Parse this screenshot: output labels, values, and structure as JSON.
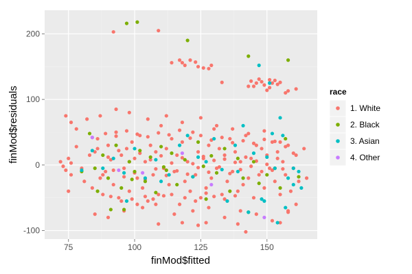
{
  "chart_data": {
    "type": "scatter",
    "xlabel": "finMod$fitted",
    "ylabel": "finMod$residuals",
    "xlim": [
      66,
      169
    ],
    "ylim": [
      -113,
      236
    ],
    "x_ticks": [
      75,
      100,
      125,
      150
    ],
    "y_ticks": [
      -100,
      0,
      100,
      200
    ],
    "x_tick_labels": [
      "75",
      "100",
      "125",
      "150"
    ],
    "y_tick_labels": [
      "-100",
      "0",
      "100",
      "200"
    ],
    "grid": true,
    "legend": {
      "title": "race",
      "position": "right",
      "entries": [
        "1. White",
        "2. Black",
        "3. Asian",
        "4. Other"
      ]
    },
    "series": [
      {
        "name": "1. White",
        "color": "#F8766D",
        "points": [
          [
            92,
            203
          ],
          [
            109,
            205
          ],
          [
            114,
            156
          ],
          [
            117,
            160
          ],
          [
            119,
            152
          ],
          [
            121,
            160
          ],
          [
            123,
            157
          ],
          [
            126,
            148
          ],
          [
            129,
            152
          ],
          [
            128,
            147
          ],
          [
            133,
            126
          ],
          [
            143,
            120
          ],
          [
            146,
            125
          ],
          [
            148,
            127
          ],
          [
            149,
            122
          ],
          [
            151,
            118
          ],
          [
            153,
            129
          ],
          [
            154,
            123
          ],
          [
            155,
            126
          ],
          [
            157,
            110
          ],
          [
            161,
            116
          ],
          [
            158,
            113
          ],
          [
            147,
            131
          ],
          [
            151,
            130
          ],
          [
            144,
            128
          ],
          [
            118,
            156
          ],
          [
            124,
            150
          ],
          [
            145,
            120
          ],
          [
            150,
            114
          ],
          [
            152,
            125
          ],
          [
            72,
            5
          ],
          [
            73,
            -2
          ],
          [
            74,
            -8
          ],
          [
            75,
            10
          ],
          [
            75,
            -40
          ],
          [
            76,
            3
          ],
          [
            76,
            -15
          ],
          [
            78,
            28
          ],
          [
            80,
            -5
          ],
          [
            81,
            -25
          ],
          [
            83,
            15
          ],
          [
            84,
            -35
          ],
          [
            85,
            20
          ],
          [
            86,
            40
          ],
          [
            87,
            -20
          ],
          [
            88,
            -45
          ],
          [
            89,
            -10
          ],
          [
            90,
            30
          ],
          [
            91,
            8
          ],
          [
            92,
            -30
          ],
          [
            93,
            50
          ],
          [
            94,
            -50
          ],
          [
            95,
            15
          ],
          [
            96,
            -5
          ],
          [
            97,
            25
          ],
          [
            98,
            -40
          ],
          [
            99,
            35
          ],
          [
            100,
            10
          ],
          [
            101,
            -20
          ],
          [
            102,
            45
          ],
          [
            103,
            -35
          ],
          [
            104,
            5
          ],
          [
            105,
            -55
          ],
          [
            106,
            30
          ],
          [
            107,
            -15
          ],
          [
            108,
            20
          ],
          [
            109,
            -45
          ],
          [
            110,
            60
          ],
          [
            111,
            -5
          ],
          [
            112,
            25
          ],
          [
            113,
            -30
          ],
          [
            114,
            40
          ],
          [
            115,
            -10
          ],
          [
            116,
            15
          ],
          [
            117,
            -60
          ],
          [
            118,
            35
          ],
          [
            119,
            -25
          ],
          [
            120,
            5
          ],
          [
            121,
            -40
          ],
          [
            122,
            50
          ],
          [
            123,
            -15
          ],
          [
            124,
            20
          ],
          [
            125,
            -50
          ],
          [
            126,
            10
          ],
          [
            127,
            -35
          ],
          [
            128,
            30
          ],
          [
            129,
            -20
          ],
          [
            130,
            55
          ],
          [
            131,
            -5
          ],
          [
            132,
            25
          ],
          [
            133,
            -45
          ],
          [
            134,
            15
          ],
          [
            135,
            -25
          ],
          [
            136,
            40
          ],
          [
            137,
            -10
          ],
          [
            138,
            20
          ],
          [
            139,
            -40
          ],
          [
            140,
            5
          ],
          [
            141,
            -30
          ],
          [
            142,
            45
          ],
          [
            143,
            -20
          ],
          [
            144,
            10
          ],
          [
            145,
            -50
          ],
          [
            146,
            30
          ],
          [
            147,
            -15
          ],
          [
            148,
            25
          ],
          [
            149,
            -35
          ],
          [
            150,
            15
          ],
          [
            151,
            -5
          ],
          [
            152,
            35
          ],
          [
            153,
            -25
          ],
          [
            154,
            20
          ],
          [
            155,
            -45
          ],
          [
            156,
            5
          ],
          [
            157,
            -15
          ],
          [
            158,
            30
          ],
          [
            159,
            -40
          ],
          [
            160,
            -5
          ],
          [
            161,
            15
          ],
          [
            162,
            -25
          ],
          [
            164,
            25
          ],
          [
            165,
            -20
          ],
          [
            74,
            75
          ],
          [
            76,
            65
          ],
          [
            78,
            55
          ],
          [
            82,
            70
          ],
          [
            85,
            -75
          ],
          [
            87,
            75
          ],
          [
            90,
            -80
          ],
          [
            93,
            85
          ],
          [
            96,
            -70
          ],
          [
            98,
            80
          ],
          [
            103,
            -65
          ],
          [
            105,
            70
          ],
          [
            108,
            -60
          ],
          [
            112,
            75
          ],
          [
            115,
            -75
          ],
          [
            118,
            65
          ],
          [
            122,
            -70
          ],
          [
            125,
            72
          ],
          [
            128,
            -65
          ],
          [
            131,
            60
          ],
          [
            134,
            -80
          ],
          [
            137,
            55
          ],
          [
            140,
            -70
          ],
          [
            143,
            48
          ],
          [
            146,
            -75
          ],
          [
            149,
            52
          ],
          [
            152,
            -85
          ],
          [
            155,
            35
          ],
          [
            158,
            -70
          ],
          [
            161,
            -60
          ],
          [
            109,
            -90
          ],
          [
            118,
            -88
          ],
          [
            124,
            -92
          ],
          [
            127,
            -88
          ],
          [
            139,
            -90
          ],
          [
            142,
            -102
          ],
          [
            155,
            -88
          ],
          [
            158,
            -72
          ],
          [
            86,
            25
          ],
          [
            88,
            -15
          ],
          [
            90,
            12
          ],
          [
            92,
            -8
          ],
          [
            94,
            22
          ],
          [
            96,
            -18
          ],
          [
            98,
            5
          ],
          [
            100,
            -12
          ],
          [
            102,
            18
          ],
          [
            104,
            -22
          ],
          [
            106,
            8
          ],
          [
            108,
            -6
          ],
          [
            110,
            14
          ],
          [
            112,
            -16
          ],
          [
            114,
            3
          ],
          [
            116,
            -9
          ],
          [
            118,
            11
          ],
          [
            120,
            -14
          ],
          [
            122,
            2
          ],
          [
            124,
            -4
          ],
          [
            126,
            13
          ],
          [
            128,
            -11
          ],
          [
            130,
            7
          ],
          [
            132,
            -3
          ],
          [
            134,
            9
          ],
          [
            136,
            -13
          ],
          [
            138,
            4
          ],
          [
            140,
            -7
          ],
          [
            142,
            12
          ],
          [
            144,
            -2
          ],
          [
            146,
            6
          ],
          [
            148,
            -10
          ],
          [
            150,
            1
          ],
          [
            152,
            -8
          ],
          [
            154,
            10
          ],
          [
            156,
            -6
          ],
          [
            91,
            -48
          ],
          [
            95,
            -55
          ],
          [
            99,
            -52
          ],
          [
            101,
            -60
          ],
          [
            104,
            -48
          ],
          [
            107,
            -52
          ],
          [
            111,
            -47
          ],
          [
            114,
            -45
          ],
          [
            119,
            -50
          ],
          [
            123,
            -55
          ],
          [
            127,
            -43
          ],
          [
            130,
            -48
          ],
          [
            134,
            -52
          ],
          [
            138,
            -47
          ],
          [
            84,
            42
          ],
          [
            89,
            48
          ],
          [
            93,
            44
          ],
          [
            97,
            52
          ],
          [
            101,
            47
          ],
          [
            105,
            43
          ],
          [
            109,
            49
          ],
          [
            113,
            46
          ],
          [
            117,
            53
          ],
          [
            121,
            41
          ],
          [
            125,
            45
          ],
          [
            129,
            38
          ],
          [
            133,
            42
          ],
          [
            137,
            34
          ],
          [
            141,
            37
          ],
          [
            145,
            33
          ],
          [
            149,
            39
          ],
          [
            153,
            36
          ],
          [
            157,
            28
          ],
          [
            160,
            18
          ]
        ]
      },
      {
        "name": "2. Black",
        "color": "#7CAE00",
        "points": [
          [
            97,
            216
          ],
          [
            101,
            218
          ],
          [
            120,
            190
          ],
          [
            143,
            166
          ],
          [
            158,
            160
          ],
          [
            83,
            48
          ],
          [
            85,
            -5
          ],
          [
            88,
            15
          ],
          [
            90,
            -20
          ],
          [
            93,
            30
          ],
          [
            95,
            -35
          ],
          [
            98,
            5
          ],
          [
            100,
            -10
          ],
          [
            102,
            22
          ],
          [
            104,
            -25
          ],
          [
            106,
            12
          ],
          [
            108,
            -42
          ],
          [
            110,
            28
          ],
          [
            112,
            -8
          ],
          [
            114,
            18
          ],
          [
            116,
            -30
          ],
          [
            119,
            8
          ],
          [
            122,
            -18
          ],
          [
            124,
            35
          ],
          [
            127,
            -52
          ],
          [
            129,
            14
          ],
          [
            131,
            -12
          ],
          [
            134,
            25
          ],
          [
            136,
            -40
          ],
          [
            139,
            10
          ],
          [
            141,
            -20
          ],
          [
            143,
            -72
          ],
          [
            145,
            5
          ],
          [
            147,
            -28
          ],
          [
            150,
            -15
          ],
          [
            153,
            -5
          ],
          [
            155,
            -35
          ],
          [
            157,
            40
          ],
          [
            162,
            -18
          ],
          [
            91,
            -68
          ],
          [
            96,
            -68
          ],
          [
            80,
            -10
          ],
          [
            86,
            -40
          ],
          [
            99,
            -22
          ],
          [
            111,
            -3
          ],
          [
            126,
            -2
          ]
        ]
      },
      {
        "name": "3. Asian",
        "color": "#00BFC4",
        "points": [
          [
            147,
            152
          ],
          [
            151,
            125
          ],
          [
            141,
            60
          ],
          [
            145,
            18
          ],
          [
            152,
            48
          ],
          [
            150,
            12
          ],
          [
            156,
            45
          ],
          [
            153,
            -5
          ],
          [
            158,
            -20
          ],
          [
            160,
            -30
          ],
          [
            162,
            -10
          ],
          [
            163,
            -35
          ],
          [
            155,
            72
          ],
          [
            157,
            -65
          ],
          [
            149,
            -55
          ],
          [
            143,
            -72
          ],
          [
            130,
            40
          ],
          [
            127,
            5
          ],
          [
            122,
            -18
          ],
          [
            117,
            30
          ],
          [
            113,
            -15
          ],
          [
            108,
            8
          ],
          [
            104,
            -20
          ],
          [
            100,
            25
          ],
          [
            96,
            -12
          ],
          [
            92,
            10
          ],
          [
            88,
            -5
          ],
          [
            84,
            22
          ],
          [
            80,
            -8
          ],
          [
            135,
            -55
          ],
          [
            139,
            -10
          ],
          [
            138,
            30
          ],
          [
            154,
            -88
          ],
          [
            160,
            -5
          ],
          [
            120,
            45
          ],
          [
            97,
            -55
          ],
          [
            148,
            -52
          ],
          [
            133,
            -7
          ],
          [
            110,
            -25
          ],
          [
            124,
            12
          ]
        ]
      },
      {
        "name": "4. Other",
        "color": "#C77CFF",
        "points": [
          [
            149,
            -80
          ],
          [
            84,
            42
          ],
          [
            103,
            -12
          ],
          [
            129,
            -30
          ],
          [
            94,
            -8
          ],
          [
            118,
            18
          ]
        ]
      }
    ]
  }
}
